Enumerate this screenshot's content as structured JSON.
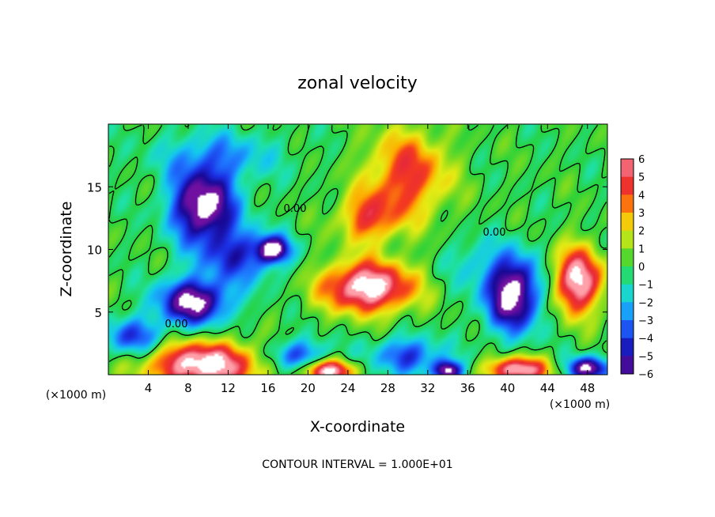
{
  "chart_data": {
    "type": "heatmap",
    "title": "zonal velocity",
    "xlabel": "X-coordinate",
    "ylabel": "Z-coordinate",
    "x_unit": "(×1000 m)",
    "footer": "CONTOUR INTERVAL = 1.000E+01",
    "xlim": [
      0,
      50
    ],
    "ylim": [
      0,
      20
    ],
    "x_ticks": [
      "4",
      "8",
      "12",
      "16",
      "20",
      "24",
      "28",
      "32",
      "36",
      "40",
      "44",
      "48"
    ],
    "y_ticks": [
      "5",
      "10",
      "15"
    ],
    "colorbar": {
      "range": [
        -6,
        6
      ],
      "labels": [
        "6",
        "5",
        "4",
        "3",
        "2",
        "1",
        "0",
        "−1",
        "−2",
        "−3",
        "−4",
        "−5",
        "−6"
      ]
    },
    "contour_labels": [
      "0.00",
      "0.00",
      "0.00"
    ],
    "blobs": [
      {
        "x": 9.5,
        "z": 13.5,
        "rx": 3.2,
        "rz": 2.8,
        "v": -7.5
      },
      {
        "x": 8.5,
        "z": 5.8,
        "rx": 3.5,
        "rz": 1.8,
        "v": -7.0
      },
      {
        "x": 16.5,
        "z": 10.0,
        "rx": 1.6,
        "rz": 1.0,
        "v": -6.5
      },
      {
        "x": 13.0,
        "z": 9.5,
        "rx": 4.0,
        "rz": 2.2,
        "v": -4.0
      },
      {
        "x": 26.0,
        "z": 7.0,
        "rx": 4.5,
        "rz": 2.0,
        "v": 7.5
      },
      {
        "x": 9.5,
        "z": 0.8,
        "rx": 5.5,
        "rz": 1.8,
        "v": 7.5
      },
      {
        "x": 40.5,
        "z": 6.5,
        "rx": 2.8,
        "rz": 3.0,
        "v": -7.5
      },
      {
        "x": 47.0,
        "z": 7.5,
        "rx": 2.5,
        "rz": 2.6,
        "v": 7.0
      },
      {
        "x": 30.0,
        "z": 16.0,
        "rx": 4.0,
        "rz": 3.5,
        "v": 4.5
      },
      {
        "x": 26.0,
        "z": 12.5,
        "rx": 3.0,
        "rz": 2.0,
        "v": 4.0
      },
      {
        "x": 2.5,
        "z": 3.0,
        "rx": 3.0,
        "rz": 1.5,
        "v": -4.0
      },
      {
        "x": 19.0,
        "z": 1.5,
        "rx": 3.0,
        "rz": 1.3,
        "v": -4.0
      },
      {
        "x": 22.0,
        "z": 0.3,
        "rx": 2.5,
        "rz": 0.9,
        "v": 7.0
      },
      {
        "x": 30.0,
        "z": 1.5,
        "rx": 3.5,
        "rz": 1.5,
        "v": -4.0
      },
      {
        "x": 34.0,
        "z": 0.3,
        "rx": 1.4,
        "rz": 0.8,
        "v": -7.0
      },
      {
        "x": 41.0,
        "z": 0.4,
        "rx": 3.0,
        "rz": 1.0,
        "v": 7.0
      },
      {
        "x": 48.0,
        "z": 0.5,
        "rx": 2.0,
        "rz": 0.9,
        "v": -7.0
      },
      {
        "x": 11.0,
        "z": 17.5,
        "rx": 6.0,
        "rz": 2.0,
        "v": -2.5
      },
      {
        "x": 36.0,
        "z": 9.0,
        "rx": 2.5,
        "rz": 2.0,
        "v": -1.5
      }
    ]
  }
}
